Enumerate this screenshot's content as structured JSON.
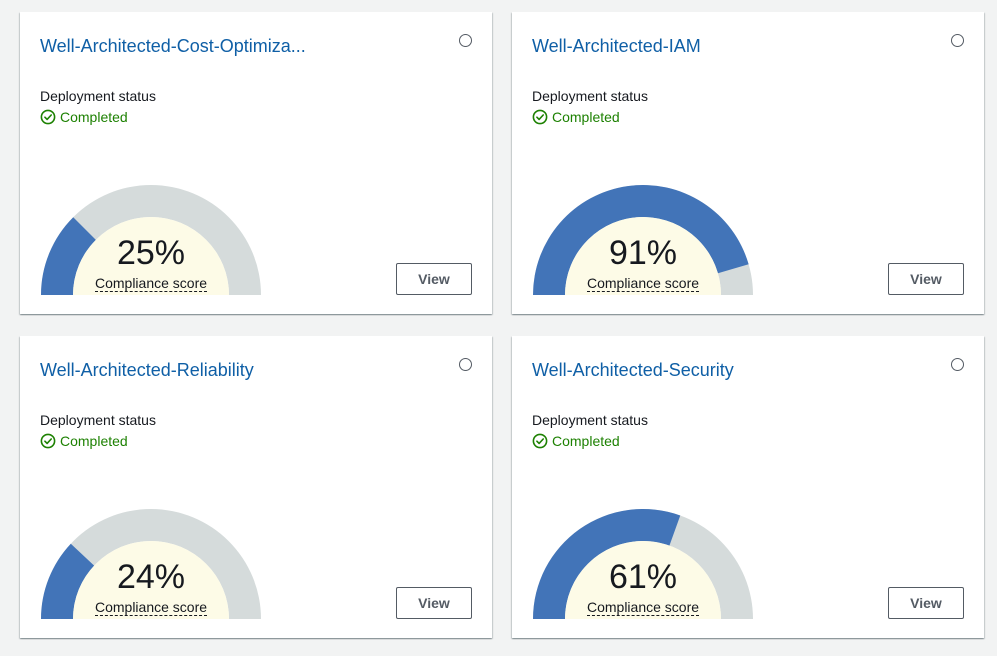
{
  "cards": [
    {
      "title": "Well-Architected-Cost-Optimiza...",
      "status_label": "Deployment status",
      "status_value": "Completed",
      "score_text": "25%",
      "score": 25,
      "score_label": "Compliance score",
      "view_label": "View"
    },
    {
      "title": "Well-Architected-IAM",
      "status_label": "Deployment status",
      "status_value": "Completed",
      "score_text": "91%",
      "score": 91,
      "score_label": "Compliance score",
      "view_label": "View"
    },
    {
      "title": "Well-Architected-Reliability",
      "status_label": "Deployment status",
      "status_value": "Completed",
      "score_text": "24%",
      "score": 24,
      "score_label": "Compliance score",
      "view_label": "View"
    },
    {
      "title": "Well-Architected-Security",
      "status_label": "Deployment status",
      "status_value": "Completed",
      "score_text": "61%",
      "score": 61,
      "score_label": "Compliance score",
      "view_label": "View"
    }
  ],
  "colors": {
    "gauge_fill": "#4274b8",
    "gauge_track": "#d5dbdb",
    "gauge_center": "#fdfbe7",
    "link": "#0f5fa6",
    "status_success": "#1d8102"
  },
  "icons": {
    "status": "check-circle-icon",
    "select": "radio-icon"
  }
}
